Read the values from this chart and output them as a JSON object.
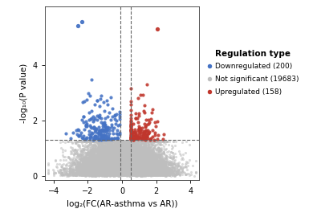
{
  "xlabel": "log₂(FC(AR-asthma vs AR))",
  "ylabel": "-log₁₀(P value)",
  "xlim": [
    -4.5,
    4.5
  ],
  "ylim": [
    -0.15,
    6.1
  ],
  "xticks": [
    -4,
    -2,
    0,
    2,
    4
  ],
  "yticks": [
    0,
    2,
    4
  ],
  "vline1": -0.1,
  "vline2": 0.5,
  "hline": 1.3,
  "color_down": "#4472C4",
  "color_ns": "#BEBEBE",
  "color_up": "#C0362C",
  "n_down": 200,
  "n_ns": 19683,
  "n_up": 158,
  "legend_title": "Regulation type",
  "legend_labels": [
    "Downregulated (200)",
    "Not significant (19683)",
    "Upregulated (158)"
  ],
  "point_size_ns": 5,
  "point_size_sig": 9,
  "alpha_ns": 0.55,
  "alpha_colored": 0.88,
  "background_color": "#ffffff",
  "random_seed": 42
}
